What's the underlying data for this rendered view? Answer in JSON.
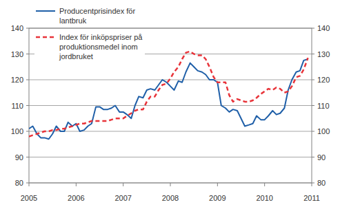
{
  "chart_data": {
    "type": "line",
    "x": [
      2005.0,
      2005.08,
      2005.17,
      2005.25,
      2005.33,
      2005.42,
      2005.5,
      2005.58,
      2005.67,
      2005.75,
      2005.83,
      2005.92,
      2006.0,
      2006.08,
      2006.17,
      2006.25,
      2006.33,
      2006.42,
      2006.5,
      2006.58,
      2006.67,
      2006.75,
      2006.83,
      2006.92,
      2007.0,
      2007.08,
      2007.17,
      2007.25,
      2007.33,
      2007.42,
      2007.5,
      2007.58,
      2007.67,
      2007.75,
      2007.83,
      2007.92,
      2008.0,
      2008.08,
      2008.17,
      2008.25,
      2008.33,
      2008.42,
      2008.5,
      2008.58,
      2008.67,
      2008.75,
      2008.83,
      2008.92,
      2009.0,
      2009.08,
      2009.17,
      2009.25,
      2009.33,
      2009.42,
      2009.5,
      2009.58,
      2009.67,
      2009.75,
      2009.83,
      2009.92,
      2010.0,
      2010.08,
      2010.17,
      2010.25,
      2010.33,
      2010.42,
      2010.5,
      2010.58,
      2010.67,
      2010.75,
      2010.83,
      2010.92
    ],
    "series": [
      {
        "name": "Producentprisindex för lantbruk",
        "color": "#1f5fa8",
        "line_style": "solid",
        "values": [
          101,
          102,
          99,
          97.5,
          97.5,
          97,
          99,
          102,
          100,
          100,
          103.5,
          102,
          103,
          100,
          100.5,
          102,
          103,
          109.5,
          109.5,
          108.5,
          108.5,
          109,
          110,
          107.5,
          107.5,
          106.5,
          105,
          110,
          113.5,
          113,
          116,
          116.5,
          116,
          118,
          120,
          119,
          117.5,
          116,
          119.5,
          119,
          123,
          126.5,
          125,
          123.5,
          123,
          122,
          120,
          120,
          119,
          110,
          109,
          107.5,
          108.5,
          108,
          105,
          102,
          102.5,
          103,
          106,
          104.5,
          104.5,
          106,
          108,
          106.5,
          107,
          109,
          116,
          120,
          123,
          123.5,
          127.5,
          128
        ]
      },
      {
        "name": "Index för inköpspriser på produktionsmedel inom jordbruket",
        "color": "#e8343a",
        "line_style": "dashed",
        "values": [
          98,
          98.5,
          99,
          99.5,
          100,
          100,
          100.5,
          100.5,
          101,
          101,
          101.5,
          102,
          102.5,
          103,
          103,
          103.5,
          104,
          104,
          104,
          104,
          104,
          104.5,
          105,
          105,
          105,
          106,
          107,
          108,
          108.5,
          108.5,
          111.5,
          113.5,
          113.5,
          116,
          118,
          118.5,
          120.5,
          123,
          125,
          128,
          130.5,
          131,
          130,
          129.5,
          129.5,
          128,
          125,
          121,
          119,
          119,
          119,
          114,
          111.5,
          112.5,
          112,
          111.5,
          111.5,
          112,
          113,
          114.5,
          115.5,
          116.5,
          116,
          117,
          116.5,
          115,
          115.5,
          117.5,
          121,
          121.5,
          124,
          128.5
        ]
      }
    ],
    "xlim": [
      2005,
      2011
    ],
    "xticks": [
      2005,
      2006,
      2007,
      2008,
      2009,
      2010,
      2011
    ],
    "ylim": [
      80,
      140
    ],
    "yticks": [
      80,
      90,
      100,
      110,
      120,
      130,
      140
    ],
    "y2lim": [
      80,
      140
    ],
    "y2ticks": [
      80,
      90,
      100,
      110,
      120,
      130,
      140
    ],
    "grid": true,
    "legend": "top-left"
  }
}
